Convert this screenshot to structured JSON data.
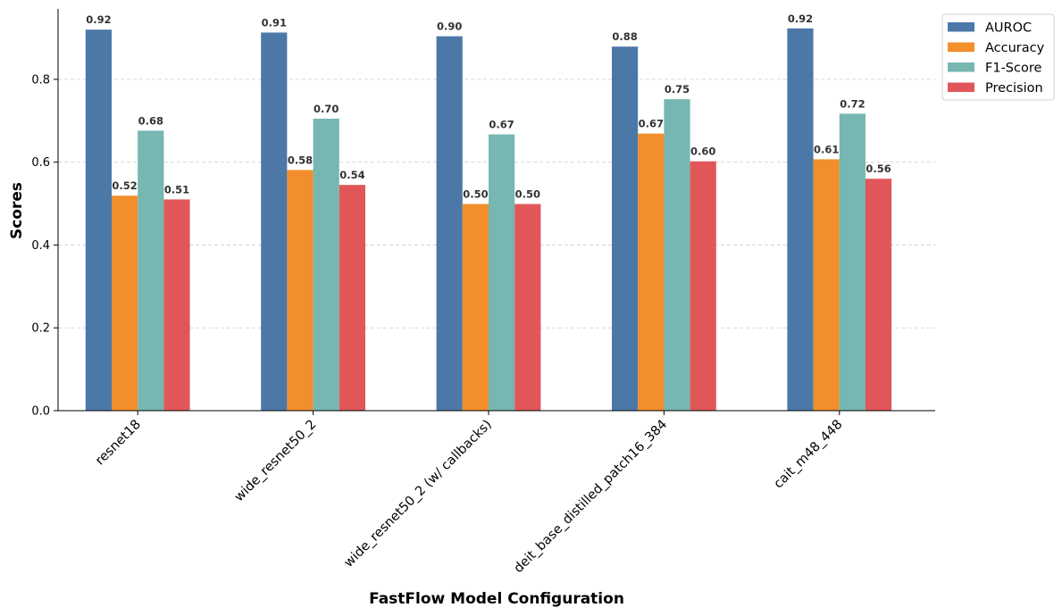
{
  "chart_data": {
    "type": "bar",
    "title": "",
    "xlabel": "FastFlow Model Configuration",
    "ylabel": "Scores",
    "ylim": [
      0,
      0.97
    ],
    "yticks": [
      "0.0",
      "0.2",
      "0.4",
      "0.6",
      "0.8"
    ],
    "grid": "horizontal dashed",
    "legend_position": "top-right outside",
    "categories": [
      "resnet18",
      "wide_resnet50_2",
      "wide_resnet50_2 (w/ callbacks)",
      "deit_base_distilled_patch16_384",
      "cait_m48_448"
    ],
    "series": [
      {
        "name": "AUROC",
        "color": "#4c78a8",
        "values": [
          0.92,
          0.913,
          0.904,
          0.879,
          0.923
        ],
        "labels": [
          "0.92",
          "0.91",
          "0.90",
          "0.88",
          "0.92"
        ]
      },
      {
        "name": "Accuracy",
        "color": "#f28e2b",
        "values": [
          0.519,
          0.581,
          0.499,
          0.669,
          0.607
        ],
        "labels": [
          "0.52",
          "0.58",
          "0.50",
          "0.67",
          "0.61"
        ]
      },
      {
        "name": "F1-Score",
        "color": "#76b7b2",
        "values": [
          0.676,
          0.705,
          0.667,
          0.752,
          0.717
        ],
        "labels": [
          "0.68",
          "0.70",
          "0.67",
          "0.75",
          "0.72"
        ]
      },
      {
        "name": "Precision",
        "color": "#e15759",
        "values": [
          0.51,
          0.545,
          0.499,
          0.602,
          0.56
        ],
        "labels": [
          "0.51",
          "0.54",
          "0.50",
          "0.60",
          "0.56"
        ]
      }
    ]
  }
}
